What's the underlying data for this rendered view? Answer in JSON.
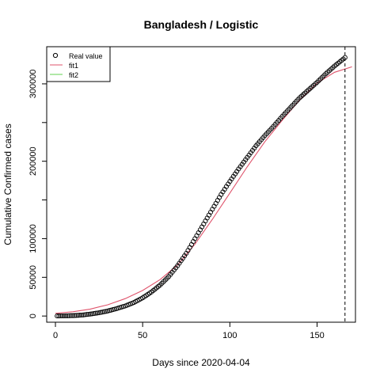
{
  "chart_data": {
    "type": "scatter",
    "title": "Bangladesh / Logistic",
    "xlabel": "Days since 2020-04-04",
    "ylabel": "Cumulative Confirmed cases",
    "xlim": [
      -5,
      172
    ],
    "ylim": [
      -8000,
      348000
    ],
    "x_ticks": [
      0,
      50,
      100,
      150
    ],
    "y_ticks": [
      0,
      50000,
      100000,
      200000,
      300000
    ],
    "y_tick_labels": [
      "0",
      "50000",
      "100000",
      "200000",
      "300000"
    ],
    "y_minor_ticks": [
      150000,
      250000
    ],
    "vline_x": 166,
    "legend_position": "top-left",
    "legend": [
      {
        "label": "Real value",
        "marker": "circle",
        "color": "#000000"
      },
      {
        "label": "fit1",
        "marker": "line",
        "color": "#DF536B"
      },
      {
        "label": "fit2",
        "marker": "line",
        "color": "#61D04F"
      }
    ],
    "series": [
      {
        "name": "Real value",
        "style": "points",
        "color": "#000000",
        "x": [
          1,
          5,
          10,
          15,
          20,
          25,
          30,
          35,
          40,
          45,
          50,
          55,
          60,
          65,
          70,
          75,
          80,
          85,
          90,
          95,
          100,
          105,
          110,
          115,
          120,
          125,
          130,
          135,
          140,
          145,
          150,
          155,
          160,
          166
        ],
        "y": [
          100,
          200,
          500,
          1200,
          2500,
          4200,
          6500,
          9500,
          13000,
          17500,
          23500,
          31000,
          40000,
          51000,
          65000,
          81000,
          100000,
          119000,
          138000,
          157000,
          174000,
          190000,
          205000,
          220000,
          233000,
          245000,
          258000,
          270000,
          282000,
          292000,
          302000,
          313000,
          323000,
          334000
        ]
      },
      {
        "name": "fit1",
        "style": "line",
        "color": "#DF536B",
        "x": [
          0,
          10,
          20,
          30,
          40,
          50,
          60,
          70,
          80,
          90,
          100,
          110,
          120,
          130,
          140,
          150,
          160,
          170
        ],
        "y": [
          3500,
          5500,
          9000,
          14500,
          22500,
          33000,
          47000,
          66000,
          93000,
          125000,
          159000,
          193000,
          225000,
          253000,
          279000,
          301000,
          315000,
          322000
        ]
      },
      {
        "name": "fit2",
        "style": "line",
        "color": "#61D04F",
        "x": [],
        "y": []
      }
    ]
  }
}
